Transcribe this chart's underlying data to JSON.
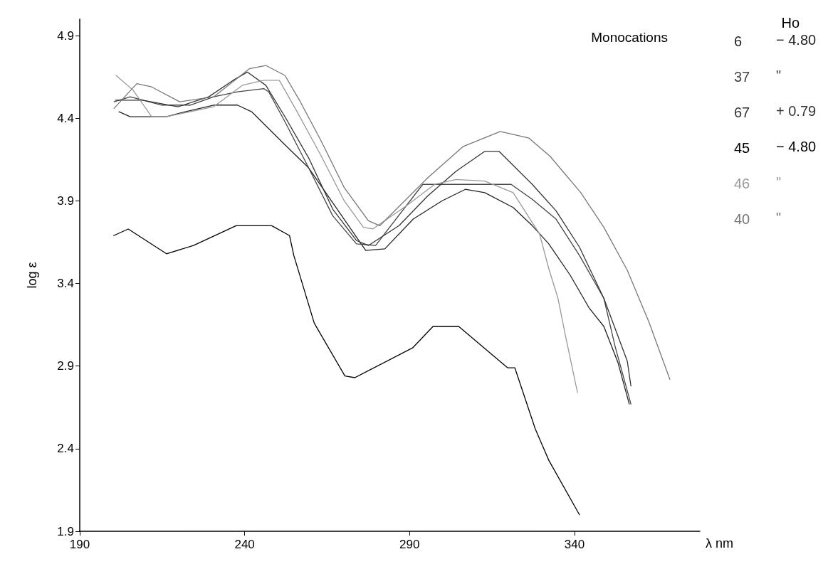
{
  "chart_data": {
    "type": "line",
    "title": "Monocations",
    "xlabel": "λ nm",
    "ylabel": "log ε",
    "legend_title": "Ho",
    "annotations": [
      "− 4.80",
      "\"",
      "+ 0.79",
      "− 4.80",
      "\"",
      "\""
    ],
    "xlim": [
      190,
      378
    ],
    "xticks": [
      190,
      240,
      290,
      340
    ],
    "ylim": [
      1.9,
      5.0
    ],
    "yticks": [
      1.9,
      2.4,
      2.9,
      3.4,
      3.9,
      4.4,
      4.9
    ],
    "grid": false,
    "legend": "right",
    "marker": "none",
    "line_style": "solid",
    "series": [
      {
        "name": "6",
        "color": "#222222",
        "x": [
          201.9,
          205.3,
          216.2,
          222.0,
          230.6,
          237.8,
          242.1,
          252.2,
          259.4,
          276.7,
          282.5,
          291.1,
          299.8,
          306.9,
          312.8,
          321.4,
          327.2,
          332.2,
          338.7,
          344.5,
          348.9,
          353.2,
          356.6
        ],
        "values": [
          4.44,
          4.41,
          4.41,
          4.44,
          4.48,
          4.48,
          4.44,
          4.24,
          4.1,
          3.6,
          3.61,
          3.79,
          3.9,
          3.97,
          3.95,
          3.86,
          3.75,
          3.64,
          3.45,
          3.25,
          3.14,
          2.92,
          2.67
        ]
      },
      {
        "name": "37",
        "color": "#444444",
        "x": [
          200.4,
          205.3,
          214.9,
          223.5,
          230.6,
          237.8,
          245.8,
          247.3,
          252.2,
          259.4,
          266.7,
          273.9,
          279.7,
          294.0,
          320.8,
          327.2,
          334.4,
          341.5,
          348.9,
          352.3,
          357.1
        ],
        "values": [
          4.5,
          4.53,
          4.48,
          4.48,
          4.53,
          4.56,
          4.58,
          4.56,
          4.38,
          4.1,
          3.81,
          3.64,
          3.63,
          4.0,
          4.0,
          3.91,
          3.79,
          3.57,
          3.31,
          3.02,
          2.67
        ]
      },
      {
        "name": "67",
        "color": "#333333",
        "x": [
          200.8,
          209.0,
          219.8,
          229.1,
          236.5,
          240.8,
          246.4,
          252.2,
          259.4,
          266.7,
          273.9,
          277.5,
          286.8,
          295.5,
          304.1,
          312.8,
          317.1,
          327.2,
          334.4,
          341.5,
          348.9,
          356.0,
          357.1
        ],
        "values": [
          4.51,
          4.51,
          4.47,
          4.53,
          4.63,
          4.68,
          4.6,
          4.41,
          4.16,
          3.85,
          3.66,
          3.63,
          3.75,
          3.93,
          4.08,
          4.2,
          4.2,
          4.0,
          3.84,
          3.62,
          3.31,
          2.93,
          2.78
        ]
      },
      {
        "name": "45",
        "color": "#000000",
        "x": [
          200.3,
          204.7,
          216.3,
          224.5,
          237.4,
          248.2,
          253.6,
          254.9,
          261.1,
          270.4,
          273.4,
          290.9,
          297.1,
          304.9,
          319.7,
          321.9,
          328.1,
          332.2,
          341.5
        ],
        "values": [
          3.69,
          3.73,
          3.58,
          3.63,
          3.75,
          3.75,
          3.69,
          3.57,
          3.16,
          2.84,
          2.83,
          3.01,
          3.14,
          3.14,
          2.89,
          2.89,
          2.52,
          2.33,
          2.0
        ]
      },
      {
        "name": "46",
        "color": "#999999",
        "x": [
          201.0,
          206.2,
          211.8,
          216.2,
          230.6,
          239.3,
          245.8,
          250.5,
          255.9,
          263.0,
          270.2,
          276.0,
          278.8,
          289.0,
          297.6,
          304.1,
          312.8,
          321.4,
          329.4,
          332.2,
          335.0,
          337.2,
          340.9
        ],
        "values": [
          4.66,
          4.57,
          4.41,
          4.41,
          4.47,
          4.6,
          4.63,
          4.63,
          4.44,
          4.18,
          3.9,
          3.74,
          3.73,
          3.87,
          4.0,
          4.03,
          4.02,
          3.95,
          3.7,
          3.49,
          3.31,
          3.09,
          2.74
        ]
      },
      {
        "name": "40",
        "color": "#777777",
        "x": [
          200.4,
          207.3,
          211.8,
          220.3,
          230.6,
          241.4,
          246.4,
          252.2,
          256.6,
          263.0,
          270.2,
          277.5,
          281.0,
          295.5,
          306.3,
          317.5,
          326.2,
          332.6,
          341.9,
          348.9,
          356.0,
          362.5,
          368.9
        ],
        "values": [
          4.46,
          4.61,
          4.59,
          4.5,
          4.53,
          4.7,
          4.72,
          4.66,
          4.51,
          4.27,
          3.98,
          3.78,
          3.75,
          4.04,
          4.23,
          4.32,
          4.28,
          4.17,
          3.95,
          3.74,
          3.48,
          3.17,
          2.82
        ]
      }
    ]
  }
}
